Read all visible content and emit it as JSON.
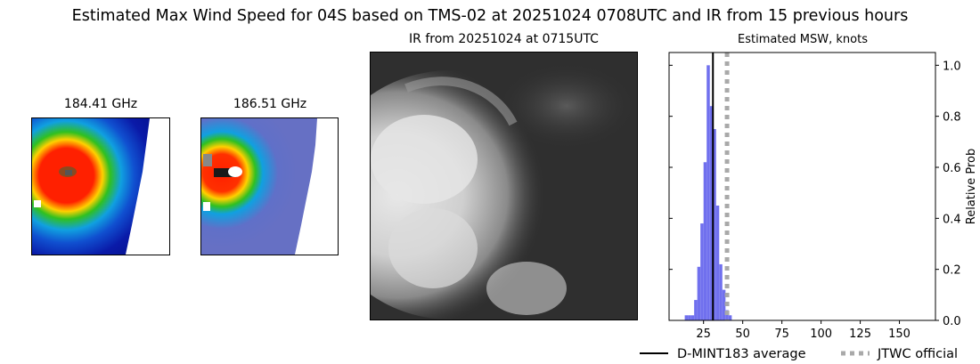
{
  "suptitle": "Estimated Max Wind Speed for 04S based on TMS-02 at 20251024 0708UTC and IR from 15 previous hours",
  "panels": {
    "mw1_title": "184.41 GHz",
    "mw2_title": "186.51 GHz",
    "ir_title": "IR from 20251024 at 0715UTC"
  },
  "colors": {
    "hist": "#7070ee",
    "average_line": "#000000",
    "official_line": "#a9a9a9"
  },
  "chart_data": {
    "type": "bar",
    "title": "Estimated MSW, knots",
    "xlabel": "",
    "ylabel": "Relative Prob",
    "xlim": [
      3,
      173
    ],
    "ylim": [
      0,
      1.05
    ],
    "xticks": [
      25,
      50,
      75,
      100,
      125,
      150
    ],
    "yticks": [
      0.0,
      0.2,
      0.4,
      0.6,
      0.8,
      1.0
    ],
    "ytick_labels": [
      "0.0",
      "0.2",
      "0.4",
      "0.6",
      "0.8",
      "1.0"
    ],
    "bin_width": 2,
    "bins": [
      {
        "x": 14,
        "p": 0.02
      },
      {
        "x": 16,
        "p": 0.02
      },
      {
        "x": 18,
        "p": 0.02
      },
      {
        "x": 20,
        "p": 0.08
      },
      {
        "x": 22,
        "p": 0.21
      },
      {
        "x": 24,
        "p": 0.38
      },
      {
        "x": 26,
        "p": 0.62
      },
      {
        "x": 28,
        "p": 1.0
      },
      {
        "x": 30,
        "p": 0.84
      },
      {
        "x": 32,
        "p": 0.75
      },
      {
        "x": 34,
        "p": 0.45
      },
      {
        "x": 36,
        "p": 0.22
      },
      {
        "x": 38,
        "p": 0.12
      },
      {
        "x": 40,
        "p": 0.04
      },
      {
        "x": 42,
        "p": 0.02
      }
    ],
    "average_x": 31,
    "official_x": 40,
    "legend": [
      {
        "label": "D-MINT183 average",
        "style": "solid"
      },
      {
        "label": "JTWC official",
        "style": "dotted"
      }
    ],
    "legend_placement": "bottom-right"
  }
}
